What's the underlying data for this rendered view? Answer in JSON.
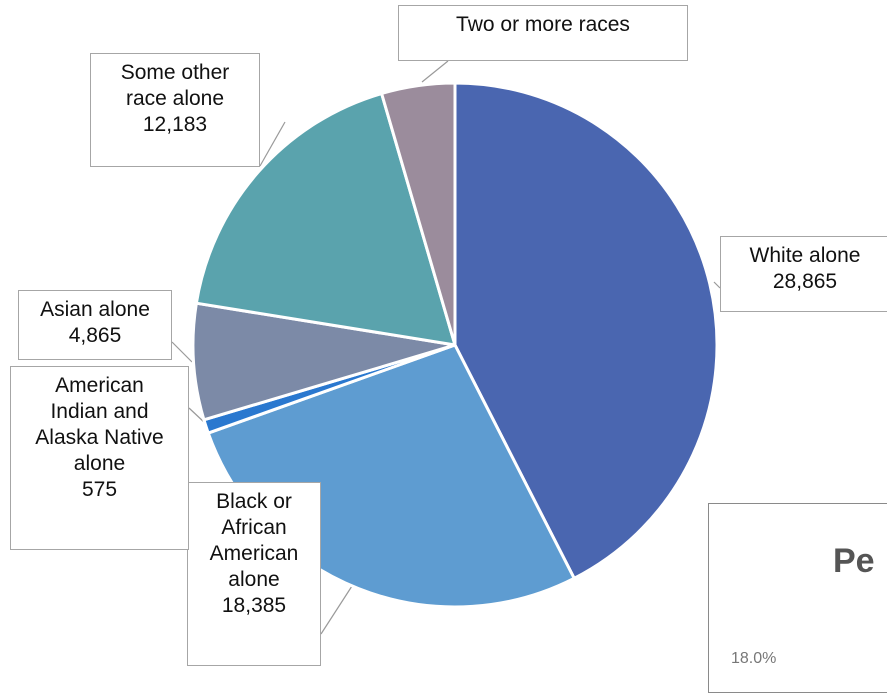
{
  "chart_data": {
    "type": "pie",
    "slices": [
      {
        "label_lines": [
          "White alone"
        ],
        "value": 28865,
        "value_text": "28,865",
        "color": "#4a66b0"
      },
      {
        "label_lines": [
          "Black or",
          "African",
          "American",
          "alone"
        ],
        "value": 18385,
        "value_text": "18,385",
        "color": "#5e9cd1"
      },
      {
        "label_lines": [
          "American",
          "Indian and",
          "Alaska Native",
          "alone"
        ],
        "value": 575,
        "value_text": "575",
        "color": "#2a78cf"
      },
      {
        "label_lines": [
          "Asian alone"
        ],
        "value": 4865,
        "value_text": "4,865",
        "color": "#7c8aa7"
      },
      {
        "label_lines": [
          "Some other",
          "race alone"
        ],
        "value": 12183,
        "value_text": "12,183",
        "color": "#5aa3ad"
      },
      {
        "label_lines": [
          "Two or more races"
        ],
        "value": 3070,
        "value_text": "",
        "color": "#9b8c9c"
      }
    ]
  },
  "inset_chart": {
    "title_fragment": "Pe",
    "tick_fragment": "18.0%"
  }
}
